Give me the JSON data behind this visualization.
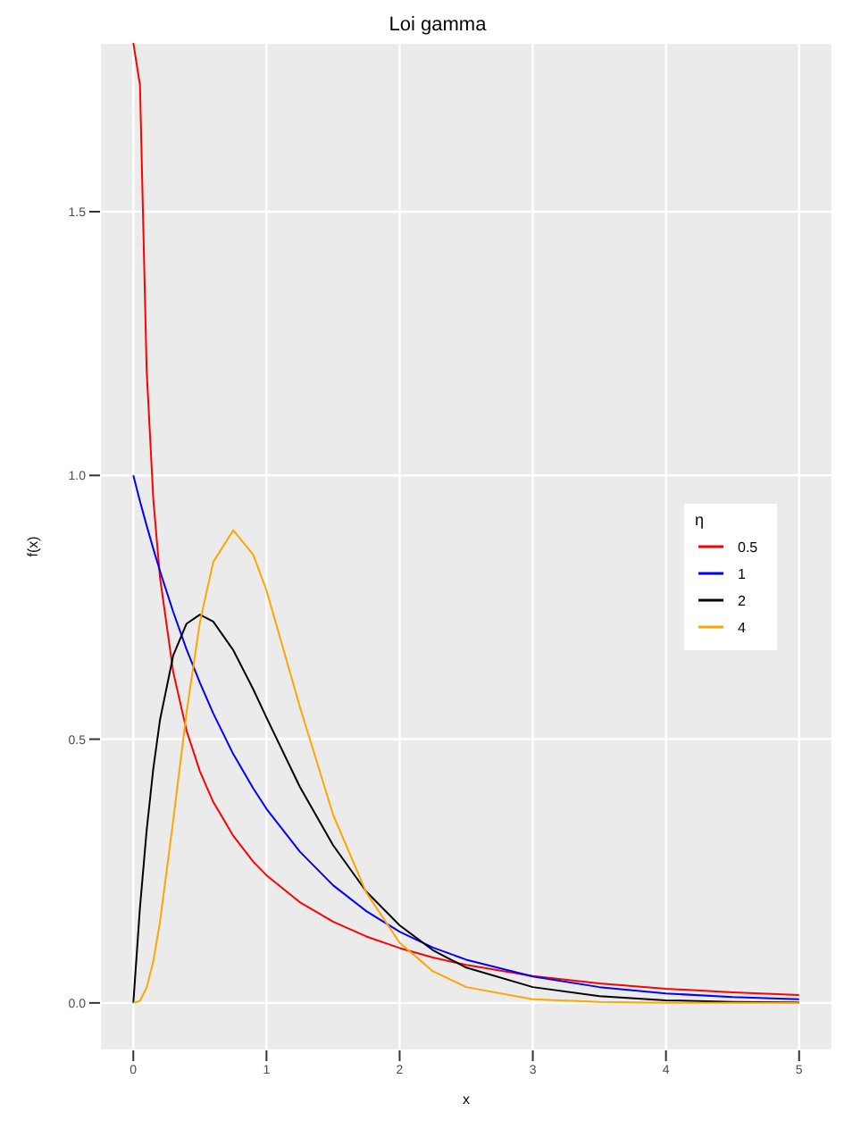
{
  "chart_data": {
    "type": "line",
    "title": "Loi gamma",
    "xlabel": "x",
    "ylabel": "f(x)",
    "legend_title": "η",
    "legend": "right",
    "grid": true,
    "marker": "none",
    "line_style": "solid",
    "x": [
      0,
      0.05,
      0.1,
      0.15,
      0.2,
      0.3,
      0.4,
      0.5,
      0.6,
      0.75,
      0.9,
      1,
      1.25,
      1.5,
      1.75,
      2,
      2.25,
      2.5,
      3,
      3.5,
      4,
      4.5,
      5
    ],
    "xlim": [
      -0.25,
      5.25
    ],
    "xticks": [
      0,
      1,
      2,
      3,
      4,
      5
    ],
    "ylim": [
      -0.09,
      1.82
    ],
    "yticks": [
      {
        "value": 0,
        "label": "0.0"
      },
      {
        "value": 0.5,
        "label": "0.5"
      },
      {
        "value": 1,
        "label": "1.0"
      },
      {
        "value": 1.5,
        "label": "1.5"
      }
    ],
    "series": [
      {
        "name": "0.5",
        "color": "#ff0000",
        "values": [
          1.82,
          1.74,
          1.2,
          0.955,
          0.807,
          0.627,
          0.516,
          0.439,
          0.381,
          0.317,
          0.268,
          0.242,
          0.191,
          0.154,
          0.126,
          0.104,
          0.086,
          0.072,
          0.051,
          0.037,
          0.027,
          0.02,
          0.015
        ]
      },
      {
        "name": "1",
        "color": "#0000ff",
        "values": [
          1,
          0.951,
          0.905,
          0.861,
          0.819,
          0.741,
          0.67,
          0.607,
          0.549,
          0.472,
          0.407,
          0.368,
          0.287,
          0.223,
          0.174,
          0.135,
          0.105,
          0.082,
          0.05,
          0.03,
          0.018,
          0.011,
          0.007
        ]
      },
      {
        "name": "2",
        "color": "#000000",
        "values": [
          0,
          0.181,
          0.327,
          0.444,
          0.536,
          0.659,
          0.719,
          0.736,
          0.723,
          0.669,
          0.595,
          0.541,
          0.41,
          0.299,
          0.211,
          0.147,
          0.1,
          0.067,
          0.03,
          0.013,
          0.005,
          0.002,
          0.001
        ]
      },
      {
        "name": "4",
        "color": "#ffa500",
        "values": [
          0,
          0.004,
          0.029,
          0.079,
          0.153,
          0.347,
          0.551,
          0.722,
          0.836,
          0.896,
          0.85,
          0.782,
          0.562,
          0.357,
          0.209,
          0.114,
          0.06,
          0.03,
          0.007,
          0.002,
          0,
          0,
          0
        ]
      }
    ]
  }
}
